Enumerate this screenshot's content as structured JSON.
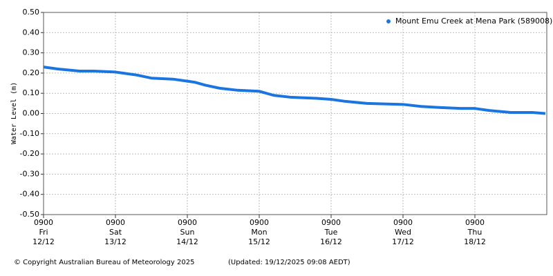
{
  "chart_data": {
    "type": "line",
    "y_label": "Water Level (m)",
    "x": [
      0,
      0.2,
      0.5,
      0.7,
      1.0,
      1.1,
      1.3,
      1.5,
      1.8,
      2.0,
      2.1,
      2.25,
      2.45,
      2.7,
      3.0,
      3.2,
      3.45,
      3.8,
      4.0,
      4.2,
      4.5,
      5.0,
      5.25,
      5.5,
      5.8,
      6.0,
      6.2,
      6.5,
      6.8,
      6.98
    ],
    "series": [
      {
        "name": "Mount Emu Creek at Mena Park (589008)",
        "color": "#1a75e0",
        "values": [
          0.23,
          0.22,
          0.21,
          0.21,
          0.205,
          0.2,
          0.19,
          0.175,
          0.17,
          0.16,
          0.155,
          0.14,
          0.125,
          0.115,
          0.11,
          0.09,
          0.08,
          0.075,
          0.07,
          0.06,
          0.05,
          0.045,
          0.035,
          0.03,
          0.025,
          0.025,
          0.015,
          0.005,
          0.005,
          0.0
        ]
      }
    ],
    "xlim": [
      0,
      7
    ],
    "xticks": [
      {
        "value": 0,
        "label": [
          "0900",
          "Fri",
          "12/12"
        ]
      },
      {
        "value": 1,
        "label": [
          "0900",
          "Sat",
          "13/12"
        ]
      },
      {
        "value": 2,
        "label": [
          "0900",
          "Sun",
          "14/12"
        ]
      },
      {
        "value": 3,
        "label": [
          "0900",
          "Mon",
          "15/12"
        ]
      },
      {
        "value": 4,
        "label": [
          "0900",
          "Tue",
          "16/12"
        ]
      },
      {
        "value": 5,
        "label": [
          "0900",
          "Wed",
          "17/12"
        ]
      },
      {
        "value": 6,
        "label": [
          "0900",
          "Thu",
          "18/12"
        ]
      }
    ],
    "ylim": [
      -0.5,
      0.5
    ],
    "yticks": [
      {
        "value": 0.5,
        "label": "0.50"
      },
      {
        "value": 0.4,
        "label": "0.40"
      },
      {
        "value": 0.3,
        "label": "0.30"
      },
      {
        "value": 0.2,
        "label": "0.20"
      },
      {
        "value": 0.1,
        "label": "0.10"
      },
      {
        "value": 0,
        "label": "0.00"
      },
      {
        "value": -0.1,
        "label": "-0.10"
      },
      {
        "value": -0.2,
        "label": "-0.20"
      },
      {
        "value": -0.3,
        "label": "-0.30"
      },
      {
        "value": -0.4,
        "label": "-0.40"
      },
      {
        "value": -0.5,
        "label": "-0.50"
      }
    ],
    "grid": true,
    "legend": "top-right",
    "copyright": "© Copyright Australian Bureau of Meteorology 2025",
    "updated": "(Updated: 19/12/2025 09:08 AEDT)"
  }
}
